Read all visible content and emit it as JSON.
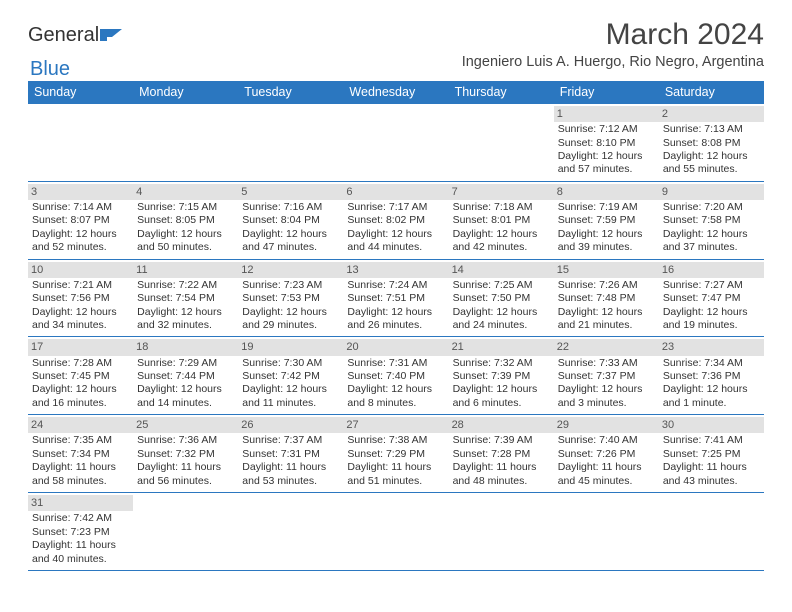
{
  "branding": {
    "logo_part1": "General",
    "logo_part2": "Blue",
    "logo_color_dark": "#333333",
    "logo_color_blue": "#2b77c0"
  },
  "header": {
    "month_title": "March 2024",
    "location": "Ingeniero Luis A. Huergo, Rio Negro, Argentina"
  },
  "colors": {
    "header_bg": "#2b77c0",
    "header_text": "#ffffff",
    "daynum_bg": "#e2e2e2",
    "rule": "#2b77c0",
    "text": "#333333"
  },
  "weekdays": [
    "Sunday",
    "Monday",
    "Tuesday",
    "Wednesday",
    "Thursday",
    "Friday",
    "Saturday"
  ],
  "days": {
    "1": {
      "sunrise": "7:12 AM",
      "sunset": "8:10 PM",
      "daylight": "12 hours and 57 minutes."
    },
    "2": {
      "sunrise": "7:13 AM",
      "sunset": "8:08 PM",
      "daylight": "12 hours and 55 minutes."
    },
    "3": {
      "sunrise": "7:14 AM",
      "sunset": "8:07 PM",
      "daylight": "12 hours and 52 minutes."
    },
    "4": {
      "sunrise": "7:15 AM",
      "sunset": "8:05 PM",
      "daylight": "12 hours and 50 minutes."
    },
    "5": {
      "sunrise": "7:16 AM",
      "sunset": "8:04 PM",
      "daylight": "12 hours and 47 minutes."
    },
    "6": {
      "sunrise": "7:17 AM",
      "sunset": "8:02 PM",
      "daylight": "12 hours and 44 minutes."
    },
    "7": {
      "sunrise": "7:18 AM",
      "sunset": "8:01 PM",
      "daylight": "12 hours and 42 minutes."
    },
    "8": {
      "sunrise": "7:19 AM",
      "sunset": "7:59 PM",
      "daylight": "12 hours and 39 minutes."
    },
    "9": {
      "sunrise": "7:20 AM",
      "sunset": "7:58 PM",
      "daylight": "12 hours and 37 minutes."
    },
    "10": {
      "sunrise": "7:21 AM",
      "sunset": "7:56 PM",
      "daylight": "12 hours and 34 minutes."
    },
    "11": {
      "sunrise": "7:22 AM",
      "sunset": "7:54 PM",
      "daylight": "12 hours and 32 minutes."
    },
    "12": {
      "sunrise": "7:23 AM",
      "sunset": "7:53 PM",
      "daylight": "12 hours and 29 minutes."
    },
    "13": {
      "sunrise": "7:24 AM",
      "sunset": "7:51 PM",
      "daylight": "12 hours and 26 minutes."
    },
    "14": {
      "sunrise": "7:25 AM",
      "sunset": "7:50 PM",
      "daylight": "12 hours and 24 minutes."
    },
    "15": {
      "sunrise": "7:26 AM",
      "sunset": "7:48 PM",
      "daylight": "12 hours and 21 minutes."
    },
    "16": {
      "sunrise": "7:27 AM",
      "sunset": "7:47 PM",
      "daylight": "12 hours and 19 minutes."
    },
    "17": {
      "sunrise": "7:28 AM",
      "sunset": "7:45 PM",
      "daylight": "12 hours and 16 minutes."
    },
    "18": {
      "sunrise": "7:29 AM",
      "sunset": "7:44 PM",
      "daylight": "12 hours and 14 minutes."
    },
    "19": {
      "sunrise": "7:30 AM",
      "sunset": "7:42 PM",
      "daylight": "12 hours and 11 minutes."
    },
    "20": {
      "sunrise": "7:31 AM",
      "sunset": "7:40 PM",
      "daylight": "12 hours and 8 minutes."
    },
    "21": {
      "sunrise": "7:32 AM",
      "sunset": "7:39 PM",
      "daylight": "12 hours and 6 minutes."
    },
    "22": {
      "sunrise": "7:33 AM",
      "sunset": "7:37 PM",
      "daylight": "12 hours and 3 minutes."
    },
    "23": {
      "sunrise": "7:34 AM",
      "sunset": "7:36 PM",
      "daylight": "12 hours and 1 minute."
    },
    "24": {
      "sunrise": "7:35 AM",
      "sunset": "7:34 PM",
      "daylight": "11 hours and 58 minutes."
    },
    "25": {
      "sunrise": "7:36 AM",
      "sunset": "7:32 PM",
      "daylight": "11 hours and 56 minutes."
    },
    "26": {
      "sunrise": "7:37 AM",
      "sunset": "7:31 PM",
      "daylight": "11 hours and 53 minutes."
    },
    "27": {
      "sunrise": "7:38 AM",
      "sunset": "7:29 PM",
      "daylight": "11 hours and 51 minutes."
    },
    "28": {
      "sunrise": "7:39 AM",
      "sunset": "7:28 PM",
      "daylight": "11 hours and 48 minutes."
    },
    "29": {
      "sunrise": "7:40 AM",
      "sunset": "7:26 PM",
      "daylight": "11 hours and 45 minutes."
    },
    "30": {
      "sunrise": "7:41 AM",
      "sunset": "7:25 PM",
      "daylight": "11 hours and 43 minutes."
    },
    "31": {
      "sunrise": "7:42 AM",
      "sunset": "7:23 PM",
      "daylight": "11 hours and 40 minutes."
    }
  },
  "layout": {
    "first_weekday_index": 5,
    "num_days": 31
  },
  "labels": {
    "sunrise_prefix": "Sunrise: ",
    "sunset_prefix": "Sunset: ",
    "daylight_prefix": "Daylight: "
  }
}
